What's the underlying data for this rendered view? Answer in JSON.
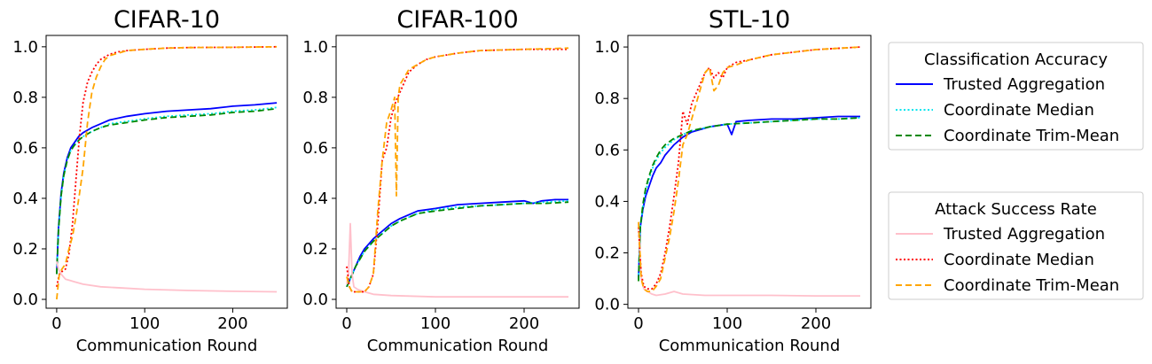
{
  "chart_data": [
    {
      "type": "line",
      "title": "CIFAR-10",
      "xlabel": "Communication Round",
      "ylabel": "",
      "xlim": [
        -12,
        262
      ],
      "ylim": [
        -0.035,
        1.045
      ],
      "xticks": [
        0,
        100,
        200
      ],
      "yticks": [
        "0.0",
        "0.2",
        "0.4",
        "0.6",
        "0.8",
        "1.0"
      ],
      "series": [
        {
          "name": "Trusted Aggregation",
          "group": "Classification Accuracy",
          "color": "#0000ff",
          "dash": "solid",
          "x": [
            0,
            2,
            5,
            8,
            12,
            16,
            20,
            25,
            30,
            40,
            50,
            60,
            80,
            100,
            125,
            150,
            175,
            200,
            225,
            250
          ],
          "y": [
            0.1,
            0.28,
            0.42,
            0.5,
            0.56,
            0.6,
            0.62,
            0.645,
            0.66,
            0.68,
            0.695,
            0.71,
            0.725,
            0.735,
            0.745,
            0.75,
            0.755,
            0.765,
            0.77,
            0.778
          ]
        },
        {
          "name": "Coordinate Median",
          "group": "Classification Accuracy",
          "color": "#00e5ee",
          "dash": "dotted",
          "x": [
            0,
            2,
            5,
            8,
            12,
            16,
            20,
            25,
            30,
            40,
            50,
            60,
            80,
            100,
            125,
            150,
            175,
            200,
            225,
            250
          ],
          "y": [
            0.1,
            0.27,
            0.41,
            0.49,
            0.55,
            0.59,
            0.61,
            0.63,
            0.645,
            0.665,
            0.68,
            0.695,
            0.705,
            0.715,
            0.725,
            0.73,
            0.735,
            0.745,
            0.75,
            0.76
          ]
        },
        {
          "name": "Coordinate Trim-Mean",
          "group": "Classification Accuracy",
          "color": "#008800",
          "dash": "dashed",
          "x": [
            0,
            2,
            5,
            8,
            12,
            16,
            20,
            25,
            30,
            40,
            50,
            60,
            80,
            100,
            125,
            150,
            175,
            200,
            225,
            250
          ],
          "y": [
            0.1,
            0.27,
            0.41,
            0.49,
            0.55,
            0.59,
            0.61,
            0.63,
            0.645,
            0.665,
            0.68,
            0.69,
            0.7,
            0.71,
            0.72,
            0.725,
            0.73,
            0.74,
            0.745,
            0.755
          ]
        },
        {
          "name": "Trusted Aggregation",
          "group": "Attack Success Rate",
          "color": "#ffc0cb",
          "dash": "solid",
          "x": [
            0,
            2,
            5,
            10,
            15,
            20,
            30,
            50,
            75,
            100,
            150,
            200,
            250
          ],
          "y": [
            0.15,
            0.12,
            0.1,
            0.08,
            0.075,
            0.07,
            0.06,
            0.05,
            0.045,
            0.04,
            0.035,
            0.032,
            0.03
          ]
        },
        {
          "name": "Coordinate Median",
          "group": "Attack Success Rate",
          "color": "#ff0000",
          "dash": "dotted",
          "x": [
            0,
            3,
            6,
            10,
            14,
            18,
            22,
            26,
            30,
            35,
            40,
            45,
            50,
            55,
            60,
            70,
            80,
            100,
            125,
            150,
            200,
            250
          ],
          "y": [
            0.05,
            0.1,
            0.11,
            0.12,
            0.18,
            0.3,
            0.48,
            0.65,
            0.78,
            0.86,
            0.9,
            0.93,
            0.95,
            0.96,
            0.97,
            0.98,
            0.985,
            0.99,
            0.995,
            0.997,
            0.998,
            1.0
          ]
        },
        {
          "name": "Coordinate Trim-Mean",
          "group": "Attack Success Rate",
          "color": "#ffa500",
          "dash": "dashed",
          "x": [
            0,
            3,
            6,
            10,
            14,
            18,
            22,
            26,
            30,
            35,
            40,
            45,
            50,
            55,
            60,
            70,
            80,
            100,
            125,
            150,
            200,
            250
          ],
          "y": [
            0.0,
            0.1,
            0.12,
            0.14,
            0.2,
            0.25,
            0.33,
            0.42,
            0.52,
            0.7,
            0.82,
            0.88,
            0.92,
            0.95,
            0.965,
            0.975,
            0.985,
            0.99,
            0.995,
            0.997,
            0.998,
            1.0
          ]
        }
      ]
    },
    {
      "type": "line",
      "title": "CIFAR-100",
      "xlabel": "Communication Round",
      "ylabel": "",
      "xlim": [
        -12,
        262
      ],
      "ylim": [
        -0.035,
        1.045
      ],
      "xticks": [
        0,
        100,
        200
      ],
      "yticks": [
        "0.0",
        "0.2",
        "0.4",
        "0.6",
        "0.8",
        "1.0"
      ],
      "series": [
        {
          "name": "Trusted Aggregation",
          "group": "Classification Accuracy",
          "color": "#0000ff",
          "dash": "solid",
          "x": [
            0,
            5,
            10,
            15,
            20,
            25,
            30,
            40,
            50,
            60,
            80,
            100,
            125,
            150,
            175,
            200,
            210,
            220,
            235,
            250
          ],
          "y": [
            0.05,
            0.09,
            0.13,
            0.17,
            0.2,
            0.22,
            0.24,
            0.27,
            0.3,
            0.32,
            0.35,
            0.36,
            0.375,
            0.38,
            0.385,
            0.39,
            0.38,
            0.39,
            0.395,
            0.395
          ]
        },
        {
          "name": "Coordinate Median",
          "group": "Classification Accuracy",
          "color": "#00e5ee",
          "dash": "dotted",
          "x": [
            0,
            5,
            10,
            15,
            20,
            25,
            30,
            40,
            50,
            60,
            80,
            100,
            125,
            150,
            175,
            200,
            225,
            250
          ],
          "y": [
            0.05,
            0.09,
            0.13,
            0.16,
            0.19,
            0.21,
            0.23,
            0.26,
            0.29,
            0.31,
            0.34,
            0.355,
            0.365,
            0.37,
            0.375,
            0.38,
            0.385,
            0.39
          ]
        },
        {
          "name": "Coordinate Trim-Mean",
          "group": "Classification Accuracy",
          "color": "#008800",
          "dash": "dashed",
          "x": [
            0,
            5,
            10,
            15,
            20,
            25,
            30,
            40,
            50,
            60,
            80,
            100,
            125,
            150,
            175,
            200,
            225,
            250
          ],
          "y": [
            0.05,
            0.09,
            0.13,
            0.16,
            0.19,
            0.21,
            0.23,
            0.26,
            0.29,
            0.31,
            0.34,
            0.35,
            0.36,
            0.37,
            0.375,
            0.38,
            0.38,
            0.385
          ]
        },
        {
          "name": "Trusted Aggregation",
          "group": "Attack Success Rate",
          "color": "#ffc0cb",
          "dash": "solid",
          "x": [
            0,
            2,
            4,
            5,
            6,
            8,
            12,
            20,
            30,
            50,
            100,
            150,
            200,
            250
          ],
          "y": [
            0.06,
            0.1,
            0.3,
            0.2,
            0.1,
            0.05,
            0.04,
            0.03,
            0.02,
            0.015,
            0.01,
            0.01,
            0.01,
            0.01
          ]
        },
        {
          "name": "Coordinate Median",
          "group": "Attack Success Rate",
          "color": "#ff0000",
          "dash": "dotted",
          "x": [
            0,
            3,
            6,
            10,
            15,
            20,
            25,
            30,
            35,
            40,
            45,
            50,
            55,
            60,
            65,
            70,
            80,
            90,
            100,
            125,
            150,
            200,
            250
          ],
          "y": [
            0.13,
            0.05,
            0.03,
            0.03,
            0.03,
            0.03,
            0.05,
            0.1,
            0.3,
            0.55,
            0.6,
            0.72,
            0.78,
            0.82,
            0.86,
            0.9,
            0.93,
            0.95,
            0.96,
            0.975,
            0.985,
            0.99,
            0.99
          ]
        },
        {
          "name": "Coordinate Trim-Mean",
          "group": "Attack Success Rate",
          "color": "#ffa500",
          "dash": "dashed",
          "x": [
            0,
            3,
            6,
            10,
            15,
            20,
            25,
            30,
            35,
            40,
            45,
            50,
            54,
            56,
            58,
            60,
            65,
            70,
            80,
            90,
            100,
            125,
            150,
            200,
            250
          ],
          "y": [
            0.09,
            0.05,
            0.03,
            0.03,
            0.03,
            0.03,
            0.05,
            0.1,
            0.35,
            0.55,
            0.7,
            0.75,
            0.8,
            0.41,
            0.8,
            0.85,
            0.88,
            0.91,
            0.93,
            0.95,
            0.96,
            0.975,
            0.985,
            0.99,
            0.995
          ]
        }
      ]
    },
    {
      "type": "line",
      "title": "STL-10",
      "xlabel": "Communication Round",
      "ylabel": "",
      "xlim": [
        -12,
        262
      ],
      "ylim": [
        -0.015,
        1.045
      ],
      "xticks": [
        0,
        100,
        200
      ],
      "yticks": [
        "0.0",
        "0.2",
        "0.4",
        "0.6",
        "0.8",
        "1.0"
      ],
      "series": [
        {
          "name": "Trusted Aggregation",
          "group": "Classification Accuracy",
          "color": "#0000ff",
          "dash": "solid",
          "x": [
            0,
            2,
            5,
            8,
            12,
            16,
            20,
            25,
            30,
            35,
            40,
            50,
            60,
            80,
            100,
            105,
            110,
            125,
            150,
            175,
            200,
            225,
            250
          ],
          "y": [
            0.1,
            0.3,
            0.37,
            0.42,
            0.46,
            0.5,
            0.53,
            0.55,
            0.58,
            0.6,
            0.62,
            0.65,
            0.67,
            0.69,
            0.7,
            0.66,
            0.71,
            0.715,
            0.72,
            0.72,
            0.725,
            0.73,
            0.73
          ]
        },
        {
          "name": "Coordinate Median",
          "group": "Classification Accuracy",
          "color": "#00e5ee",
          "dash": "dotted",
          "x": [
            0,
            2,
            5,
            8,
            12,
            16,
            20,
            25,
            30,
            40,
            50,
            60,
            80,
            100,
            125,
            150,
            175,
            200,
            225,
            250
          ],
          "y": [
            0.1,
            0.3,
            0.38,
            0.44,
            0.49,
            0.53,
            0.56,
            0.59,
            0.61,
            0.64,
            0.66,
            0.675,
            0.69,
            0.7,
            0.705,
            0.71,
            0.715,
            0.72,
            0.72,
            0.725
          ]
        },
        {
          "name": "Coordinate Trim-Mean",
          "group": "Classification Accuracy",
          "color": "#008800",
          "dash": "dashed",
          "x": [
            0,
            2,
            5,
            8,
            12,
            16,
            20,
            25,
            30,
            40,
            50,
            60,
            80,
            100,
            125,
            150,
            175,
            200,
            225,
            250
          ],
          "y": [
            0.09,
            0.3,
            0.39,
            0.45,
            0.5,
            0.54,
            0.57,
            0.6,
            0.62,
            0.645,
            0.66,
            0.675,
            0.69,
            0.7,
            0.705,
            0.71,
            0.715,
            0.72,
            0.72,
            0.725
          ]
        },
        {
          "name": "Trusted Aggregation",
          "group": "Attack Success Rate",
          "color": "#ffc0cb",
          "dash": "solid",
          "x": [
            0,
            3,
            6,
            10,
            15,
            20,
            30,
            40,
            50,
            75,
            100,
            150,
            200,
            250
          ],
          "y": [
            0.3,
            0.1,
            0.06,
            0.05,
            0.04,
            0.035,
            0.04,
            0.05,
            0.04,
            0.035,
            0.035,
            0.035,
            0.033,
            0.033
          ]
        },
        {
          "name": "Coordinate Median",
          "group": "Attack Success Rate",
          "color": "#ff0000",
          "dash": "dotted",
          "x": [
            0,
            3,
            6,
            10,
            15,
            20,
            25,
            30,
            35,
            40,
            45,
            50,
            55,
            60,
            65,
            70,
            75,
            80,
            85,
            90,
            95,
            100,
            110,
            125,
            150,
            200,
            250
          ],
          "y": [
            0.3,
            0.12,
            0.07,
            0.06,
            0.06,
            0.08,
            0.12,
            0.2,
            0.3,
            0.42,
            0.55,
            0.75,
            0.7,
            0.78,
            0.82,
            0.86,
            0.9,
            0.92,
            0.88,
            0.9,
            0.88,
            0.92,
            0.94,
            0.95,
            0.97,
            0.99,
            1.0
          ]
        },
        {
          "name": "Coordinate Trim-Mean",
          "group": "Attack Success Rate",
          "color": "#ffa500",
          "dash": "dashed",
          "x": [
            0,
            3,
            6,
            10,
            15,
            20,
            25,
            30,
            35,
            40,
            45,
            50,
            55,
            60,
            65,
            70,
            75,
            80,
            85,
            90,
            95,
            100,
            110,
            125,
            150,
            200,
            250
          ],
          "y": [
            0.32,
            0.1,
            0.06,
            0.05,
            0.05,
            0.07,
            0.1,
            0.18,
            0.26,
            0.36,
            0.48,
            0.62,
            0.66,
            0.72,
            0.78,
            0.84,
            0.9,
            0.92,
            0.83,
            0.85,
            0.9,
            0.92,
            0.93,
            0.95,
            0.97,
            0.99,
            1.0
          ]
        }
      ]
    }
  ],
  "legends": [
    {
      "title": "Classification Accuracy",
      "entries": [
        {
          "label": "Trusted Aggregation",
          "color": "#0000ff",
          "dash": "solid"
        },
        {
          "label": "Coordinate Median",
          "color": "#00e5ee",
          "dash": "dotted"
        },
        {
          "label": "Coordinate Trim-Mean",
          "color": "#008800",
          "dash": "dashed"
        }
      ]
    },
    {
      "title": "Attack Success Rate",
      "entries": [
        {
          "label": "Trusted Aggregation",
          "color": "#ffc0cb",
          "dash": "solid"
        },
        {
          "label": "Coordinate Median",
          "color": "#ff0000",
          "dash": "dotted"
        },
        {
          "label": "Coordinate Trim-Mean",
          "color": "#ffa500",
          "dash": "dashed"
        }
      ]
    }
  ]
}
